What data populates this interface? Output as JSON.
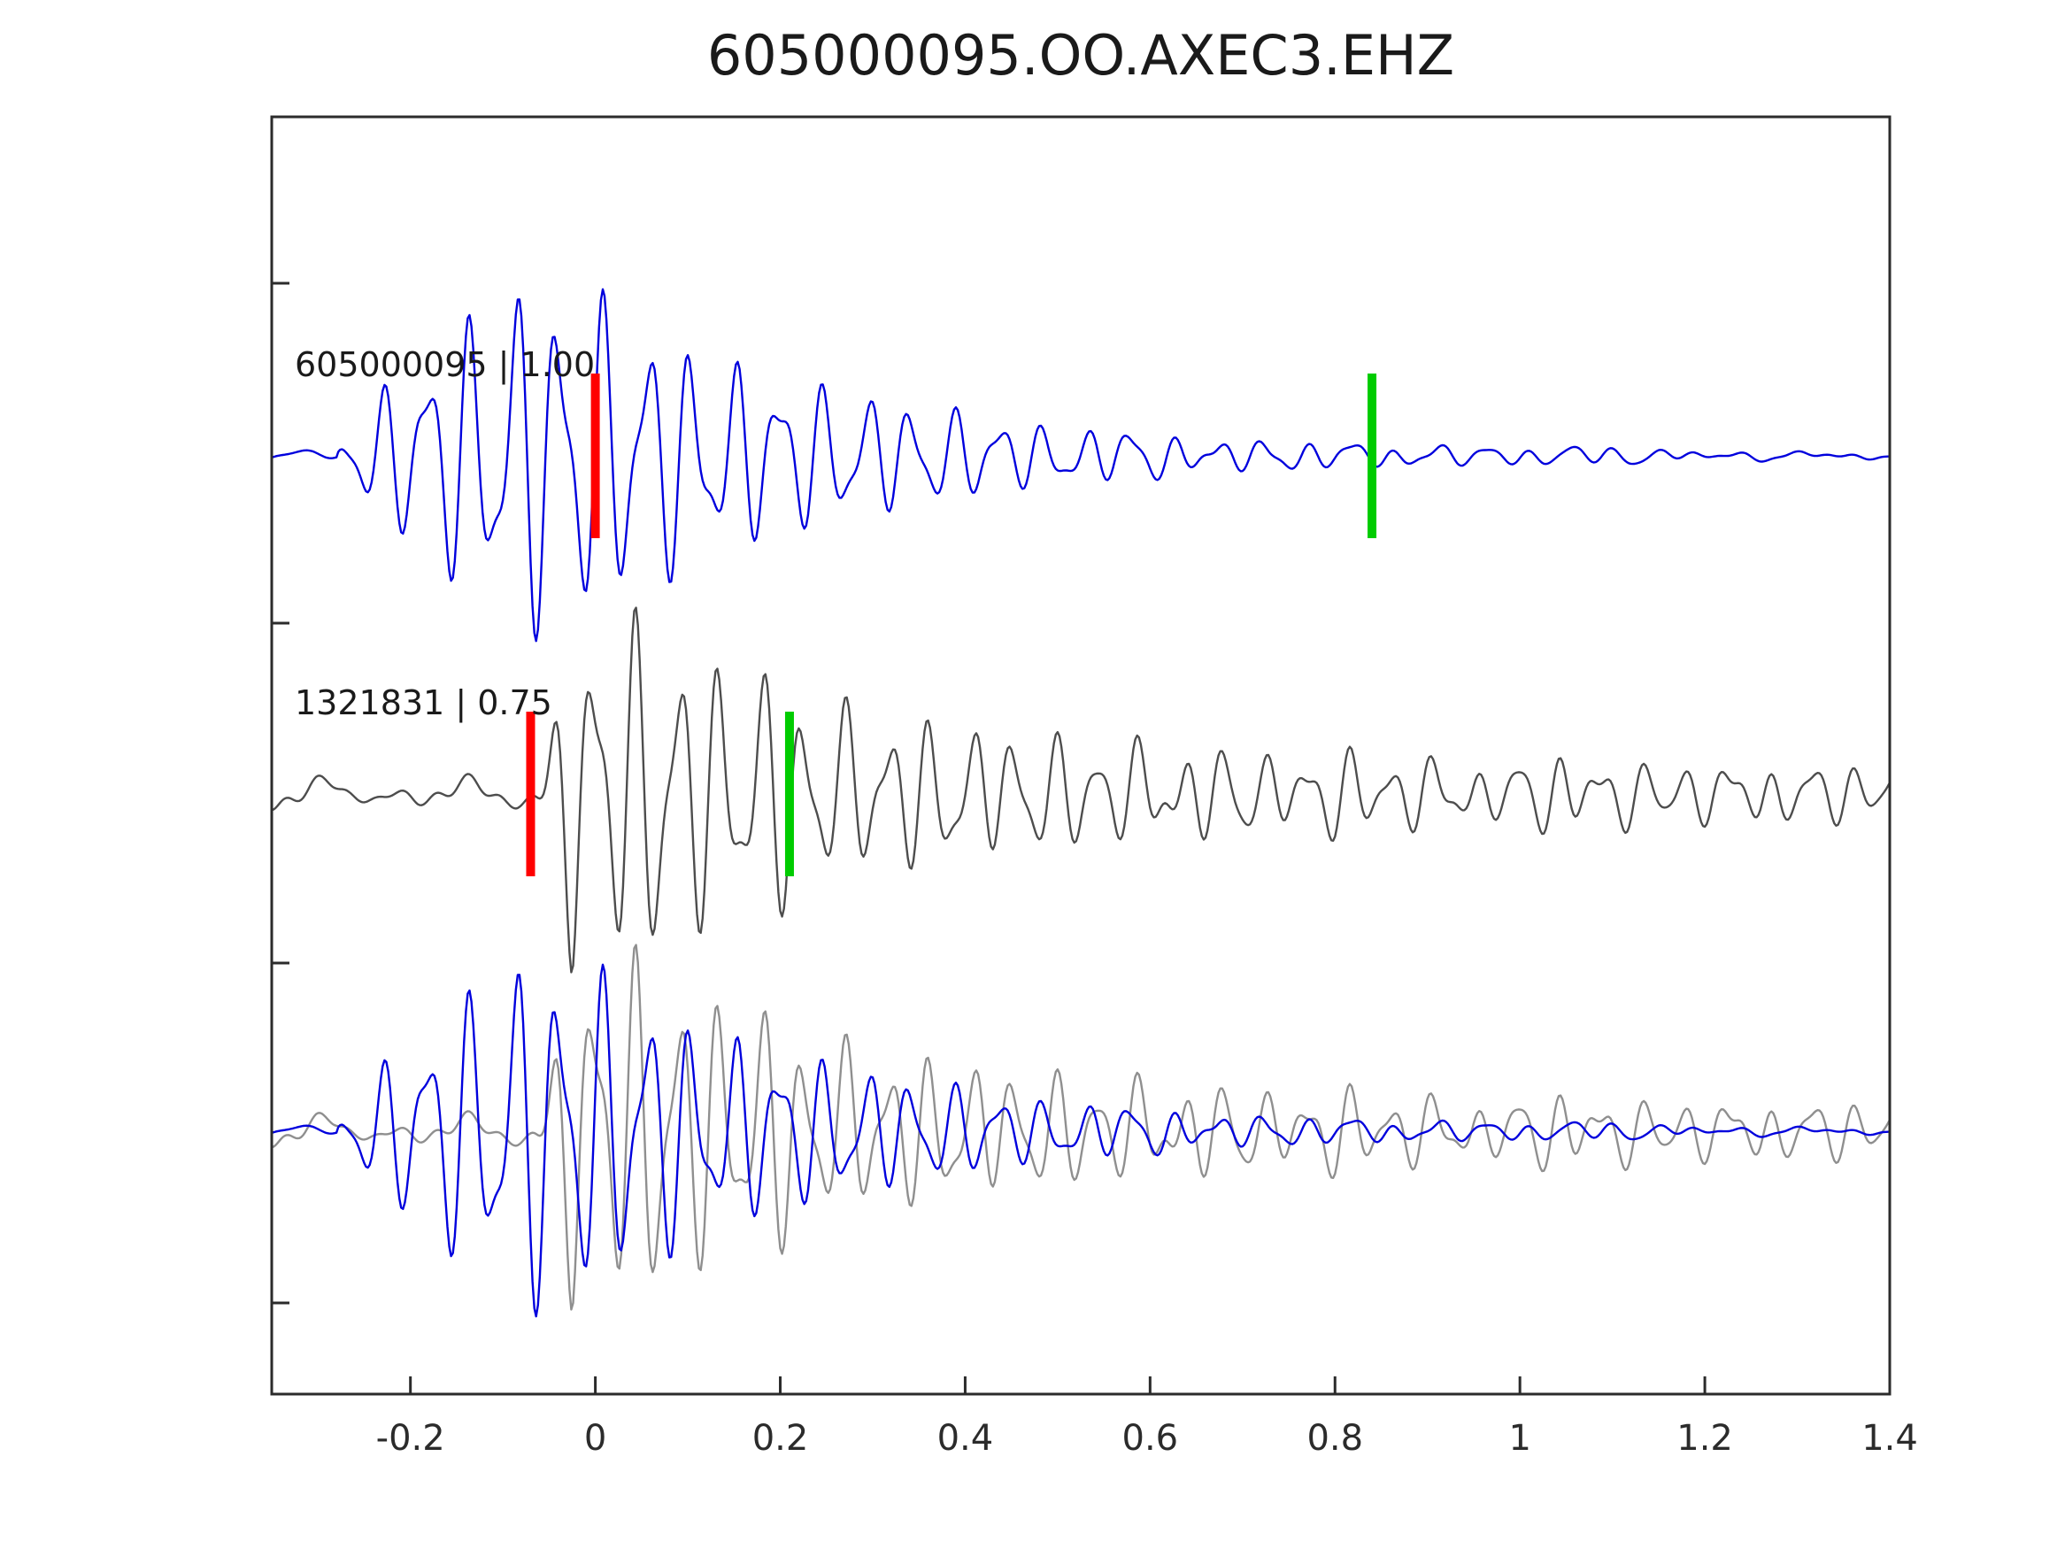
{
  "colors": {
    "background": "#ffffff",
    "axis": "#2b2b2b",
    "text": "#1a1a1a",
    "pick_marker": "#ff0000",
    "reference_marker": "#00cc00",
    "template_trace": "#0000dd",
    "candidate_trace": "#4d4d4d",
    "candidate_overlay_trace": "#8f8f8f"
  },
  "chart_data": {
    "type": "line",
    "title": "605000095.OO.AXEC3.EHZ",
    "xlabel": "",
    "ylabel": "",
    "grid": false,
    "legend": "none",
    "x_range": [
      -0.35,
      1.4
    ],
    "x_ticks": [
      -0.2,
      0,
      0.2,
      0.4,
      0.6,
      0.8,
      1,
      1.2,
      1.4
    ],
    "x_tick_labels": [
      "-0.2",
      "0",
      "0.2",
      "0.4",
      "0.6",
      "0.8",
      "1",
      "1.2",
      "1.4"
    ],
    "rows": [
      {
        "label": "605000095 | 1.00",
        "event_id": "605000095",
        "correlation": 1.0,
        "traces": [
          "template"
        ],
        "markers": [
          {
            "name": "pick",
            "x": 0.0,
            "color": "#ff0000"
          },
          {
            "name": "reference",
            "x": 0.84,
            "color": "#00cc00"
          }
        ]
      },
      {
        "label": "1321831 | 0.75",
        "event_id": "1321831",
        "correlation": 0.75,
        "traces": [
          "candidate"
        ],
        "markers": [
          {
            "name": "pick",
            "x": -0.07,
            "color": "#ff0000"
          },
          {
            "name": "reference",
            "x": 0.21,
            "color": "#00cc00"
          }
        ]
      },
      {
        "label": "",
        "traces": [
          "candidate_overlay",
          "template"
        ],
        "markers": []
      }
    ],
    "waveforms": {
      "template": {
        "color": "#0000dd",
        "stroke_width": 2.4,
        "seed": 11,
        "noise_amp": 0.05,
        "onset": -0.28,
        "rise": 0.21,
        "rise_pow": 0.7,
        "tau": 0.26,
        "coda_amp": 0.17,
        "coda_tau": 0.55,
        "f1": 21,
        "f2": 34,
        "p1": 1.2,
        "p2": 2.8
      },
      "candidate": {
        "color": "#4d4d4d",
        "stroke_width": 2.4,
        "seed": 29,
        "noise_amp": 0.1,
        "onset": -0.075,
        "rise": 0.05,
        "rise_pow": 2,
        "tau": 0.22,
        "coda_amp": 0.27,
        "coda_tau": 2.2,
        "f1": 22,
        "f2": 35,
        "p1": 4.0,
        "p2": 0.7
      },
      "candidate_overlay": {
        "same_as": "candidate",
        "color": "#8f8f8f"
      }
    }
  }
}
